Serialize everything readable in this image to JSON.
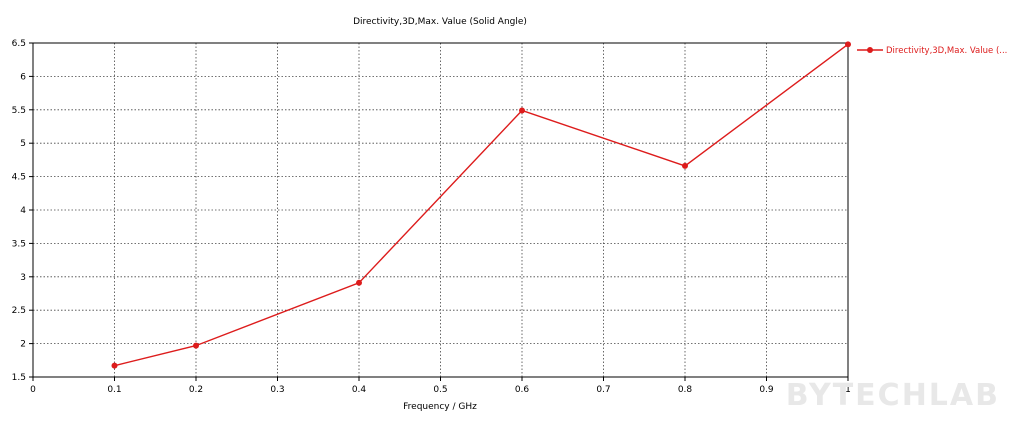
{
  "chart_data": {
    "type": "line",
    "title": "Directivity,3D,Max. Value (Solid Angle)",
    "xlabel": "Frequency / GHz",
    "ylabel": "",
    "xlim": [
      0,
      1
    ],
    "ylim": [
      1.5,
      6.5
    ],
    "x_ticks": [
      "0",
      "0.1",
      "0.2",
      "0.3",
      "0.4",
      "0.5",
      "0.6",
      "0.7",
      "0.8",
      "0.9",
      "1"
    ],
    "y_ticks": [
      "1.5",
      "2",
      "2.5",
      "3",
      "3.5",
      "4",
      "4.5",
      "5",
      "5.5",
      "6",
      "6.5"
    ],
    "grid": true,
    "legend_position": "top-right outside",
    "series": [
      {
        "name": "Directivity,3D,Max. Value (...",
        "color": "#dd1c1c",
        "x": [
          0.1,
          0.2,
          0.4,
          0.6,
          0.8,
          1.0
        ],
        "y": [
          1.67,
          1.97,
          2.91,
          5.49,
          4.66,
          6.48
        ]
      }
    ]
  },
  "watermark": "BYTECHLAB"
}
